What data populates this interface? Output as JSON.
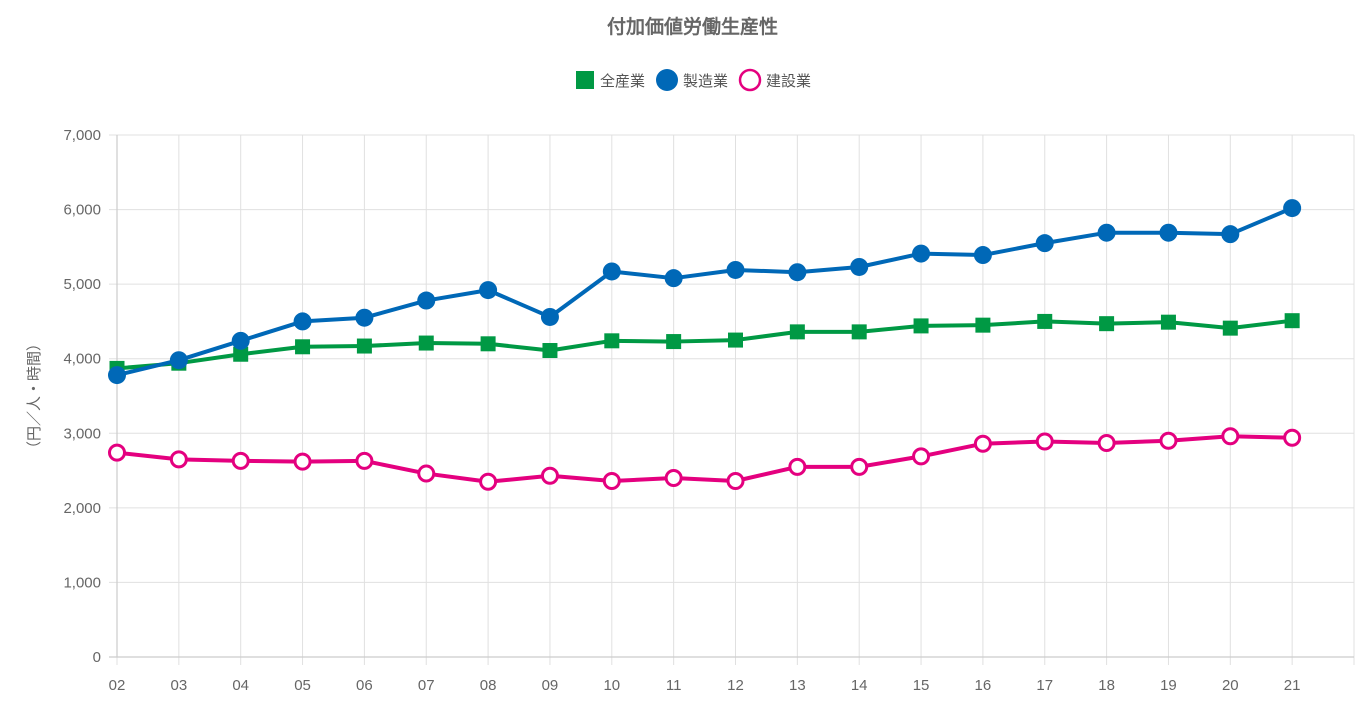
{
  "chart_data": {
    "type": "line",
    "title": "付加価値労働生産性",
    "xlabel": "",
    "ylabel": "（円／人・時間）",
    "x": [
      "02",
      "03",
      "04",
      "05",
      "06",
      "07",
      "08",
      "09",
      "10",
      "11",
      "12",
      "13",
      "14",
      "15",
      "16",
      "17",
      "18",
      "19",
      "20",
      "21"
    ],
    "ylim": [
      0,
      7000
    ],
    "yticks": [
      "0",
      "1,000",
      "2,000",
      "3,000",
      "4,000",
      "5,000",
      "6,000",
      "7,000"
    ],
    "grid": true,
    "legend_position": "top-center",
    "series": [
      {
        "name": "全産業",
        "color": "#009944",
        "marker": "square",
        "values": [
          3870,
          3940,
          4060,
          4160,
          4170,
          4210,
          4200,
          4110,
          4240,
          4230,
          4250,
          4360,
          4360,
          4440,
          4450,
          4500,
          4470,
          4490,
          4410,
          4510
        ]
      },
      {
        "name": "製造業",
        "color": "#0068b7",
        "marker": "circle",
        "values": [
          3780,
          3980,
          4240,
          4500,
          4550,
          4780,
          4920,
          4560,
          5170,
          5080,
          5190,
          5160,
          5230,
          5410,
          5390,
          5550,
          5690,
          5690,
          5670,
          6020
        ]
      },
      {
        "name": "建設業",
        "color": "#e4007f",
        "marker": "open-circle",
        "values": [
          2740,
          2650,
          2630,
          2620,
          2630,
          2460,
          2350,
          2430,
          2360,
          2400,
          2360,
          2550,
          2550,
          2690,
          2860,
          2890,
          2870,
          2900,
          2960,
          2940
        ]
      }
    ]
  }
}
